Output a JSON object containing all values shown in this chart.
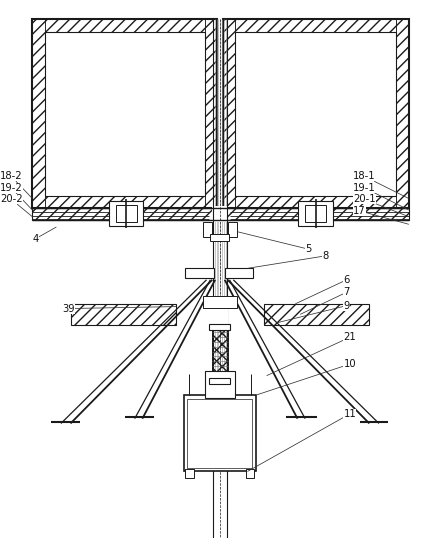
{
  "fig_width": 4.22,
  "fig_height": 5.5,
  "dpi": 100,
  "bg_color": "#ffffff",
  "lc": "#1a1a1a"
}
